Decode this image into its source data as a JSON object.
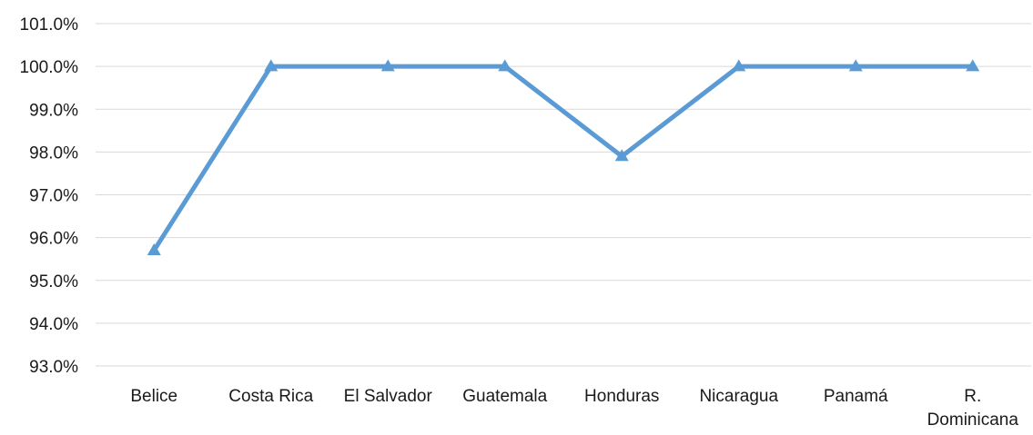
{
  "chart_data": {
    "type": "line",
    "title": "",
    "xlabel": "",
    "ylabel": "",
    "categories": [
      "Belice",
      "Costa Rica",
      "El Salvador",
      "Guatemala",
      "Honduras",
      "Nicaragua",
      "Panamá",
      "R. Dominicana"
    ],
    "series": [
      {
        "values": [
          95.7,
          100.0,
          100.0,
          100.0,
          97.9,
          100.0,
          100.0,
          100.0
        ],
        "color": "#5b9bd5",
        "marker": "triangle"
      }
    ],
    "ylim": [
      93.0,
      101.0
    ],
    "ytick_step": 1.0,
    "ytick_format": "percent-1dp",
    "grid": true,
    "legend": "none"
  }
}
